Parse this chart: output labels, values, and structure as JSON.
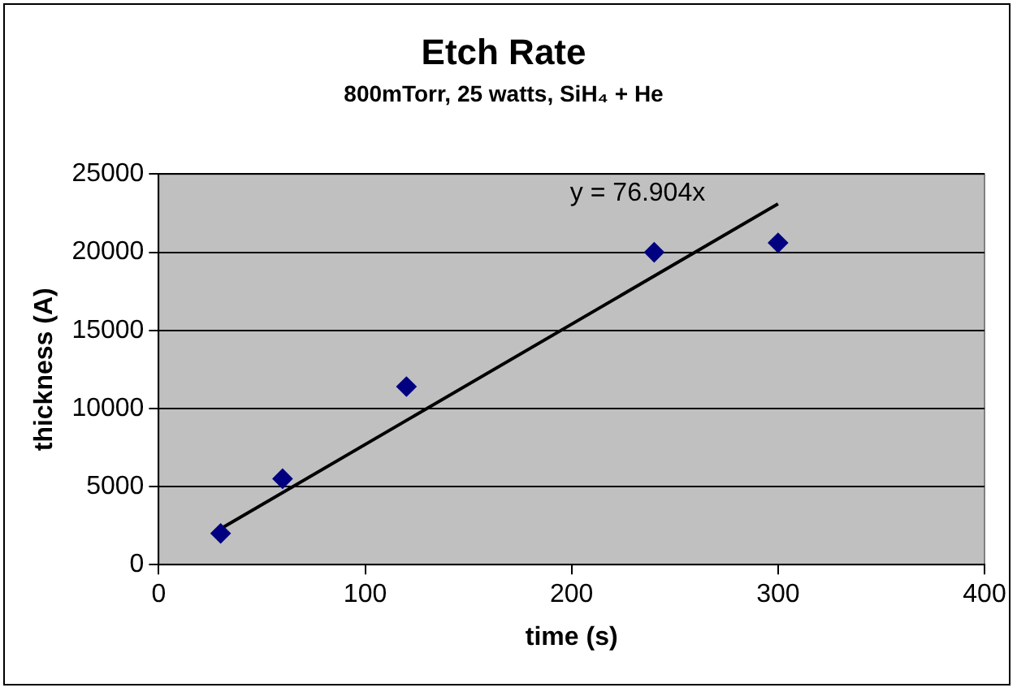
{
  "chart_data": {
    "type": "scatter",
    "title": "Etch Rate",
    "subtitle": "800mTorr, 25 watts, SiH₄ + He",
    "xlabel": "time (s)",
    "ylabel": "thickness (A)",
    "x": [
      30,
      60,
      120,
      240,
      300
    ],
    "series": [
      {
        "type": "scatter",
        "color": "#000080",
        "marker": "diamond",
        "values": [
          2000,
          5500,
          11400,
          20000,
          20600
        ]
      },
      {
        "type": "line",
        "color": "#000000",
        "marker": "none",
        "x": [
          30,
          300
        ],
        "values": [
          2300,
          23100
        ]
      }
    ],
    "annotations": [
      "y = 76.904x"
    ],
    "xlim": [
      0,
      400
    ],
    "xticks": [
      0,
      100,
      200,
      300,
      400
    ],
    "ylim": [
      0,
      25000
    ],
    "yticks": [
      0,
      5000,
      10000,
      15000,
      20000,
      25000
    ],
    "grid": "y",
    "legend": false
  }
}
